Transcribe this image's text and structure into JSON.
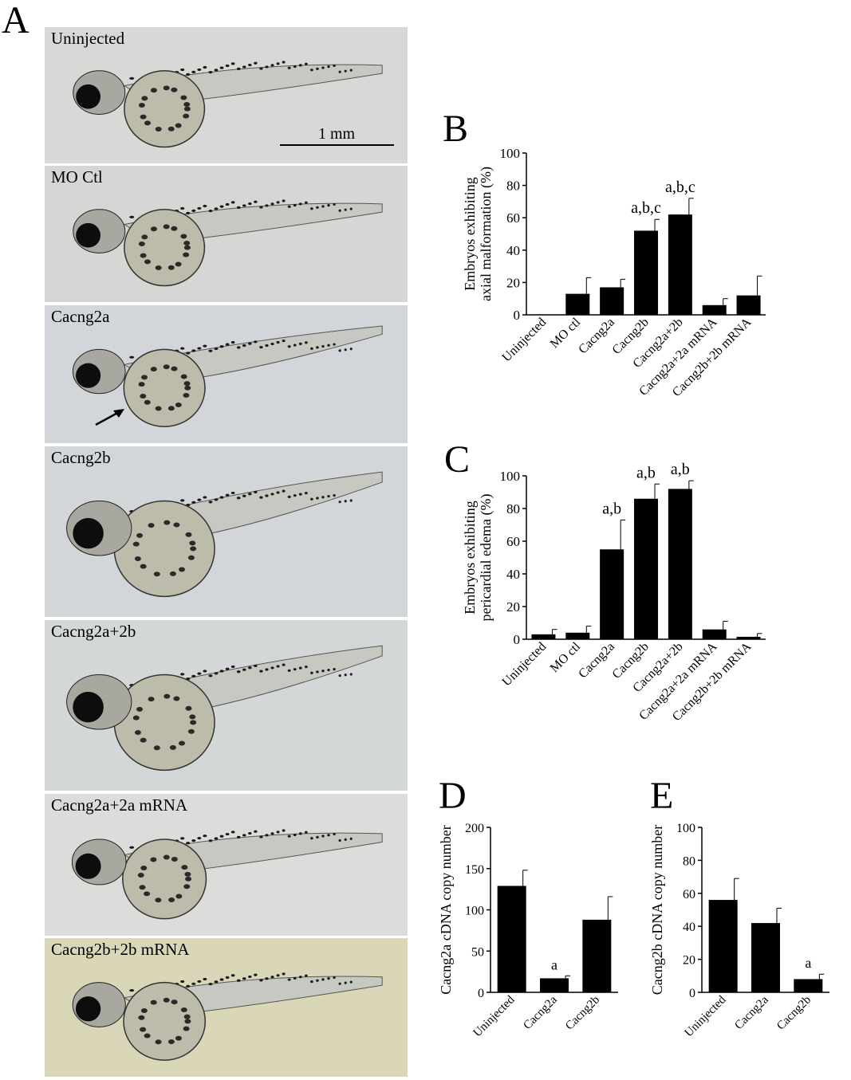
{
  "panel_labels": {
    "a": "A",
    "b": "B",
    "c": "C",
    "d": "D",
    "e": "E"
  },
  "photos": [
    {
      "label": "Uninjected",
      "bg": "#d8d8d6"
    },
    {
      "label": "MO Ctl",
      "bg": "#d6d6d4"
    },
    {
      "label": "Cacng2a",
      "bg": "#d2d6da"
    },
    {
      "label": "Cacng2b",
      "bg": "#d2d6d8"
    },
    {
      "label": "Cacng2a+2b",
      "bg": "#d4d7d8"
    },
    {
      "label": "Cacng2a+2a mRNA",
      "bg": "#dcdcda"
    },
    {
      "label": "Cacng2b+2b mRNA",
      "bg": "#d9d7b8"
    }
  ],
  "scale_bar": {
    "label": "1 mm"
  },
  "chart_data": [
    {
      "panel": "B",
      "type": "bar",
      "ylabel": [
        "Embryos exhibiting",
        "axial malformation (%)"
      ],
      "categories": [
        "Uninjected",
        "MO ctl",
        "Cacng2a",
        "Cacng2b",
        "Cacng2a+2b",
        "Cacng2a+2a mRNA",
        "Cacng2b+2b mRNA"
      ],
      "values": [
        0,
        13,
        17,
        52,
        62,
        6,
        12
      ],
      "errors": [
        0,
        10,
        5,
        7,
        10,
        4,
        12
      ],
      "annotations": [
        "",
        "",
        "",
        "a,b,c",
        "a,b,c",
        "",
        ""
      ],
      "ylim": [
        0,
        100
      ],
      "yticks": [
        0,
        20,
        40,
        60,
        80,
        100
      ],
      "bar_color": "#000000"
    },
    {
      "panel": "C",
      "type": "bar",
      "ylabel": [
        "Embryos exhibiting",
        "pericardial edema (%)"
      ],
      "categories": [
        "Uninjected",
        "MO ctl",
        "Cacng2a",
        "Cacng2b",
        "Cacng2a+2b",
        "Cacng2a+2a mRNA",
        "Cacng2b+2b mRNA"
      ],
      "values": [
        3,
        4,
        55,
        86,
        92,
        6,
        1.5
      ],
      "errors": [
        3,
        4,
        18,
        9,
        5,
        5,
        2
      ],
      "annotations": [
        "",
        "",
        "a,b",
        "a,b",
        "a,b",
        "",
        ""
      ],
      "ylim": [
        0,
        100
      ],
      "yticks": [
        0,
        20,
        40,
        60,
        80,
        100
      ],
      "bar_color": "#000000"
    },
    {
      "panel": "D",
      "type": "bar",
      "ylabel": [
        "Cacng2a cDNA copy number"
      ],
      "categories": [
        "Uninjected",
        "Cacng2a",
        "Cacng2b"
      ],
      "values": [
        129,
        17,
        88
      ],
      "errors": [
        19,
        3,
        28
      ],
      "annotations": [
        "",
        "a",
        ""
      ],
      "ylim": [
        0,
        200
      ],
      "yticks": [
        0,
        50,
        100,
        150,
        200
      ],
      "bar_color": "#000000"
    },
    {
      "panel": "E",
      "type": "bar",
      "ylabel": [
        "Cacng2b cDNA copy number"
      ],
      "categories": [
        "Uninjected",
        "Cacng2a",
        "Cacng2b"
      ],
      "values": [
        56,
        42,
        8
      ],
      "errors": [
        13,
        9,
        3
      ],
      "annotations": [
        "",
        "",
        "a"
      ],
      "ylim": [
        0,
        100
      ],
      "yticks": [
        0,
        20,
        40,
        60,
        80,
        100
      ],
      "bar_color": "#000000"
    }
  ]
}
